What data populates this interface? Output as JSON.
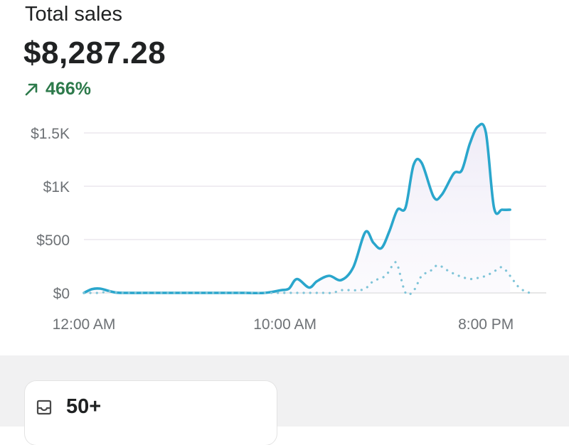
{
  "card": {
    "title": "Total sales",
    "amount": "$8,287.28",
    "change": "466%",
    "change_color": "#2d7a4b",
    "change_icon": "arrow-up-right-icon"
  },
  "chart_data": {
    "type": "line",
    "y_ticks": [
      "$0",
      "$500",
      "$1K",
      "$1.5K"
    ],
    "x_tick_labels": [
      "12:00 AM",
      "10:00 AM",
      "8:00 PM"
    ],
    "ylim": [
      0,
      1500
    ],
    "grid": true,
    "series": [
      {
        "style": "solid",
        "color": "#2aa6cc",
        "x": [
          0,
          0.4,
          0.8,
          1.2,
          1.6,
          2.0,
          3,
          4,
          5,
          6,
          7,
          8,
          9,
          9.8,
          10.2,
          10.6,
          11.2,
          11.6,
          12.2,
          12.8,
          13.4,
          14,
          14.4,
          14.8,
          15.2,
          15.6,
          16.0,
          16.4,
          16.8,
          17.4,
          17.8,
          18.4,
          18.8,
          19.2,
          19.6,
          20.0,
          20.4,
          20.8,
          21.2
        ],
        "y": [
          0,
          35,
          40,
          20,
          3,
          0,
          0,
          0,
          0,
          0,
          0,
          0,
          0,
          25,
          40,
          130,
          50,
          110,
          160,
          120,
          240,
          570,
          470,
          420,
          580,
          780,
          800,
          1200,
          1220,
          900,
          920,
          1120,
          1150,
          1400,
          1560,
          1500,
          800,
          780,
          780
        ]
      },
      {
        "style": "dotted",
        "color": "#7fc4d8",
        "x": [
          0,
          0.8,
          1.2,
          1.6,
          2.0,
          3,
          4,
          5,
          6,
          7,
          8,
          9,
          10,
          11,
          12,
          12.4,
          12.8,
          13.6,
          14.0,
          14.4,
          15.0,
          15.4,
          15.6,
          16.0,
          16.4,
          16.8,
          17.2,
          17.6,
          18.0,
          18.4,
          18.8,
          19.2,
          19.6,
          20.0,
          20.4,
          20.8,
          21.2,
          21.6,
          22.0,
          22.3
        ],
        "y": [
          0,
          0,
          15,
          5,
          0,
          0,
          0,
          0,
          0,
          0,
          0,
          0,
          0,
          0,
          0,
          0,
          25,
          25,
          40,
          110,
          160,
          270,
          260,
          0,
          20,
          160,
          200,
          260,
          220,
          180,
          150,
          130,
          140,
          160,
          200,
          240,
          160,
          60,
          10,
          0
        ]
      }
    ]
  },
  "summary": {
    "value": "50+",
    "icon": "inbox-icon"
  }
}
